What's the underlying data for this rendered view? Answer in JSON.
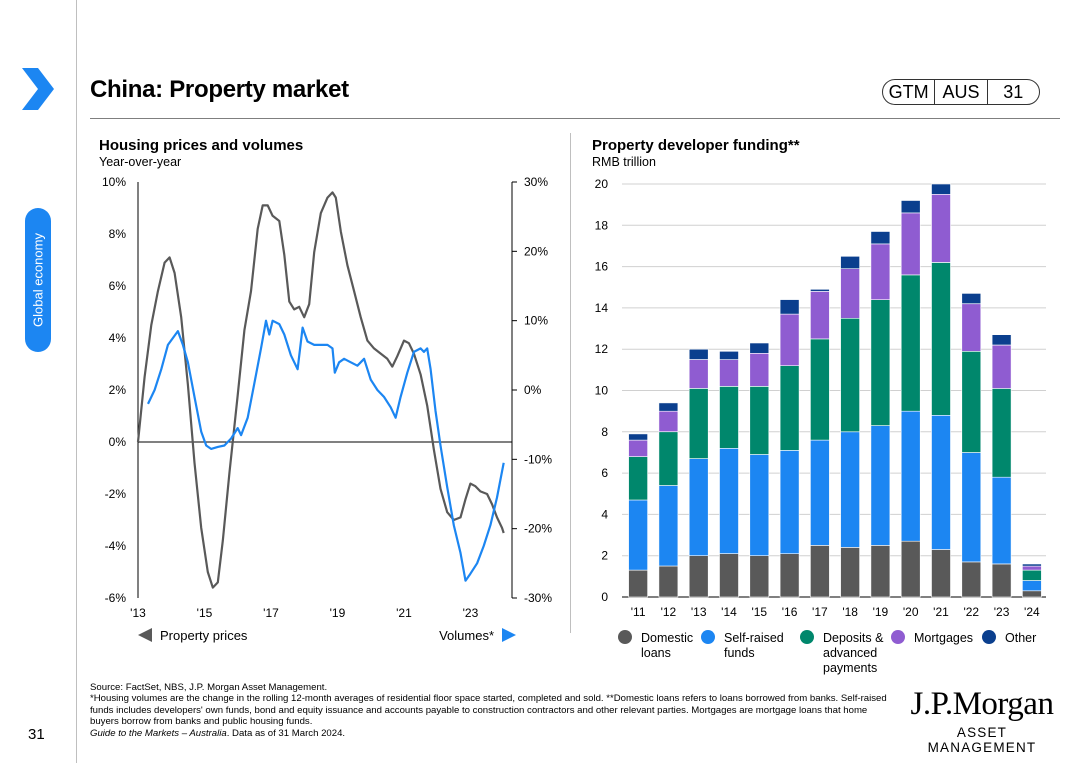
{
  "header": {
    "title": "China: Property market",
    "pill": [
      "GTM",
      "AUS",
      "31"
    ],
    "side_tab": "Global economy",
    "page_number": "31"
  },
  "colors": {
    "accent_blue": "#1c86f2",
    "prices_line": "#595959",
    "volumes_line": "#1c86f2",
    "domestic": "#595959",
    "self_raised": "#1c86f2",
    "deposits": "#00876c",
    "mortgages": "#8f5cd1",
    "other": "#0b3f8e"
  },
  "footnotes": {
    "source": "Source: FactSet, NBS, J.P. Morgan Asset Management.",
    "note1": "*Housing volumes are the change in the rolling 12-month averages of residential floor space started, completed and sold. **Domestic loans refers to loans borrowed from banks. Self-raised funds includes developers' own funds, bond and equity issuance and accounts payable to construction contractors and other relevant parties. Mortgages are mortgage loans that home buyers borrow from banks and public housing funds.",
    "guide_italic": "Guide to the Markets – Australia",
    "guide_rest": ". Data as of 31 March 2024."
  },
  "logo": {
    "name": "J.P.Morgan",
    "sub": "ASSET MANAGEMENT"
  },
  "chart_data": [
    {
      "type": "line",
      "title": "Housing prices and volumes",
      "subtitle": "Year-over-year",
      "x_tick_labels": [
        "'13",
        "'15",
        "'17",
        "'19",
        "'21",
        "'23"
      ],
      "x_range": [
        2013.0,
        2024.25
      ],
      "left_axis": {
        "range": [
          -6,
          10
        ],
        "ticks": [
          "10%",
          "8%",
          "6%",
          "4%",
          "2%",
          "0%",
          "-2%",
          "-4%",
          "-6%"
        ]
      },
      "right_axis": {
        "range": [
          -30,
          30
        ],
        "ticks": [
          "30%",
          "20%",
          "10%",
          "0%",
          "-10%",
          "-20%",
          "-30%"
        ]
      },
      "legend": {
        "left_label": "Property prices",
        "right_label": "Volumes*"
      },
      "series": [
        {
          "name": "Property prices",
          "axis": "left",
          "points": [
            [
              2013.0,
              0.0
            ],
            [
              2013.2,
              2.5
            ],
            [
              2013.4,
              4.5
            ],
            [
              2013.6,
              5.8
            ],
            [
              2013.8,
              6.9
            ],
            [
              2013.95,
              7.1
            ],
            [
              2014.1,
              6.5
            ],
            [
              2014.3,
              4.8
            ],
            [
              2014.5,
              2.2
            ],
            [
              2014.7,
              -0.8
            ],
            [
              2014.9,
              -3.3
            ],
            [
              2015.1,
              -5.0
            ],
            [
              2015.25,
              -5.6
            ],
            [
              2015.4,
              -5.4
            ],
            [
              2015.55,
              -3.8
            ],
            [
              2015.75,
              -1.2
            ],
            [
              2016.0,
              1.8
            ],
            [
              2016.2,
              4.3
            ],
            [
              2016.4,
              5.8
            ],
            [
              2016.6,
              8.2
            ],
            [
              2016.75,
              9.1
            ],
            [
              2016.9,
              9.1
            ],
            [
              2017.05,
              8.7
            ],
            [
              2017.25,
              8.5
            ],
            [
              2017.4,
              7.2
            ],
            [
              2017.55,
              5.4
            ],
            [
              2017.7,
              5.1
            ],
            [
              2017.85,
              5.2
            ],
            [
              2018.0,
              4.8
            ],
            [
              2018.15,
              5.3
            ],
            [
              2018.3,
              7.3
            ],
            [
              2018.5,
              8.8
            ],
            [
              2018.7,
              9.4
            ],
            [
              2018.85,
              9.6
            ],
            [
              2018.95,
              9.4
            ],
            [
              2019.1,
              8.1
            ],
            [
              2019.3,
              6.8
            ],
            [
              2019.5,
              5.8
            ],
            [
              2019.7,
              4.8
            ],
            [
              2019.9,
              3.9
            ],
            [
              2020.1,
              3.6
            ],
            [
              2020.3,
              3.4
            ],
            [
              2020.5,
              3.2
            ],
            [
              2020.65,
              2.9
            ],
            [
              2020.8,
              3.3
            ],
            [
              2021.0,
              3.9
            ],
            [
              2021.15,
              3.8
            ],
            [
              2021.3,
              3.4
            ],
            [
              2021.5,
              2.6
            ],
            [
              2021.7,
              1.4
            ],
            [
              2021.9,
              -0.3
            ],
            [
              2022.1,
              -1.8
            ],
            [
              2022.3,
              -2.7
            ],
            [
              2022.5,
              -3.0
            ],
            [
              2022.7,
              -2.9
            ],
            [
              2022.85,
              -2.2
            ],
            [
              2023.0,
              -1.6
            ],
            [
              2023.15,
              -1.7
            ],
            [
              2023.3,
              -1.9
            ],
            [
              2023.5,
              -2.0
            ],
            [
              2023.65,
              -2.4
            ],
            [
              2023.8,
              -2.9
            ],
            [
              2023.95,
              -3.3
            ],
            [
              2024.0,
              -3.5
            ]
          ]
        },
        {
          "name": "Volumes*",
          "axis": "right",
          "points": [
            [
              2013.3,
              -2.0
            ],
            [
              2013.5,
              0.0
            ],
            [
              2013.7,
              3.0
            ],
            [
              2013.9,
              6.5
            ],
            [
              2014.05,
              7.5
            ],
            [
              2014.2,
              8.5
            ],
            [
              2014.35,
              6.5
            ],
            [
              2014.5,
              4.0
            ],
            [
              2014.7,
              -1.0
            ],
            [
              2014.9,
              -6.0
            ],
            [
              2015.05,
              -8.0
            ],
            [
              2015.2,
              -8.5
            ],
            [
              2015.4,
              -8.2
            ],
            [
              2015.6,
              -8.0
            ],
            [
              2015.8,
              -7.0
            ],
            [
              2016.0,
              -5.5
            ],
            [
              2016.1,
              -6.5
            ],
            [
              2016.3,
              -4.0
            ],
            [
              2016.5,
              1.0
            ],
            [
              2016.7,
              6.0
            ],
            [
              2016.85,
              10.0
            ],
            [
              2016.95,
              8.0
            ],
            [
              2017.05,
              10.0
            ],
            [
              2017.25,
              9.5
            ],
            [
              2017.4,
              8.0
            ],
            [
              2017.6,
              5.0
            ],
            [
              2017.8,
              3.0
            ],
            [
              2017.95,
              9.0
            ],
            [
              2018.1,
              7.0
            ],
            [
              2018.3,
              6.5
            ],
            [
              2018.5,
              6.5
            ],
            [
              2018.7,
              6.5
            ],
            [
              2018.85,
              6.0
            ],
            [
              2018.92,
              2.5
            ],
            [
              2019.05,
              4.0
            ],
            [
              2019.2,
              4.5
            ],
            [
              2019.4,
              4.0
            ],
            [
              2019.6,
              3.5
            ],
            [
              2019.8,
              4.5
            ],
            [
              2020.0,
              1.5
            ],
            [
              2020.2,
              0.0
            ],
            [
              2020.4,
              -1.0
            ],
            [
              2020.6,
              -2.5
            ],
            [
              2020.75,
              -4.0
            ],
            [
              2020.9,
              -1.0
            ],
            [
              2021.1,
              2.5
            ],
            [
              2021.3,
              5.5
            ],
            [
              2021.5,
              6.0
            ],
            [
              2021.6,
              5.5
            ],
            [
              2021.7,
              6.0
            ],
            [
              2021.8,
              3.0
            ],
            [
              2021.95,
              -3.0
            ],
            [
              2022.1,
              -8.0
            ],
            [
              2022.3,
              -14.0
            ],
            [
              2022.5,
              -19.5
            ],
            [
              2022.7,
              -23.5
            ],
            [
              2022.85,
              -27.5
            ],
            [
              2023.0,
              -26.5
            ],
            [
              2023.2,
              -25.0
            ],
            [
              2023.4,
              -22.5
            ],
            [
              2023.6,
              -19.5
            ],
            [
              2023.8,
              -15.5
            ],
            [
              2024.0,
              -10.5
            ]
          ]
        }
      ]
    },
    {
      "type": "bar",
      "stacked": true,
      "title": "Property developer funding**",
      "subtitle": "RMB trillion",
      "categories": [
        "'11",
        "'12",
        "'13",
        "'14",
        "'15",
        "'16",
        "'17",
        "'18",
        "'19",
        "'20",
        "'21",
        "'22",
        "'23",
        "'24"
      ],
      "ylim": [
        0,
        20
      ],
      "y_ticks": [
        "20",
        "18",
        "16",
        "14",
        "12",
        "10",
        "8",
        "6",
        "4",
        "2",
        "0"
      ],
      "series": [
        {
          "name": "Domestic loans",
          "values": [
            1.3,
            1.5,
            2.0,
            2.1,
            2.0,
            2.1,
            2.5,
            2.4,
            2.5,
            2.7,
            2.3,
            1.7,
            1.6,
            0.3
          ]
        },
        {
          "name": "Self-raised funds",
          "values": [
            3.4,
            3.9,
            4.7,
            5.1,
            4.9,
            5.0,
            5.1,
            5.6,
            5.8,
            6.3,
            6.5,
            5.3,
            4.2,
            0.5
          ]
        },
        {
          "name": "Deposits & advanced payments",
          "values": [
            2.1,
            2.6,
            3.4,
            3.0,
            3.3,
            4.1,
            4.9,
            5.5,
            6.1,
            6.6,
            7.4,
            4.9,
            4.3,
            0.5
          ]
        },
        {
          "name": "Mortgages",
          "values": [
            0.8,
            1.0,
            1.4,
            1.3,
            1.6,
            2.5,
            2.3,
            2.4,
            2.7,
            3.0,
            3.3,
            2.3,
            2.1,
            0.2
          ]
        },
        {
          "name": "Other",
          "values": [
            0.3,
            0.4,
            0.5,
            0.4,
            0.5,
            0.7,
            0.1,
            0.6,
            0.6,
            0.6,
            0.5,
            0.5,
            0.5,
            0.1
          ]
        }
      ],
      "legend": [
        {
          "label": "Domestic loans",
          "lines": [
            "Domestic",
            "loans"
          ]
        },
        {
          "label": "Self-raised funds",
          "lines": [
            "Self-raised",
            "funds"
          ]
        },
        {
          "label": "Deposits & advanced payments",
          "lines": [
            "Deposits &",
            "advanced",
            "payments"
          ]
        },
        {
          "label": "Mortgages",
          "lines": [
            "Mortgages"
          ]
        },
        {
          "label": "Other",
          "lines": [
            "Other"
          ]
        }
      ]
    }
  ]
}
